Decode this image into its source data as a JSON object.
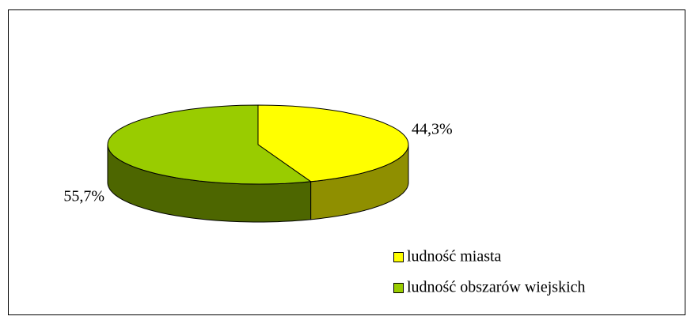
{
  "chart_data": {
    "type": "pie",
    "categories": [
      "ludność miasta",
      "ludność obszarów wiejskich"
    ],
    "values": [
      44.3,
      55.7
    ],
    "value_labels": [
      "44,3%",
      "55,7%"
    ],
    "colors": [
      "#ffff00",
      "#99cc00"
    ]
  }
}
